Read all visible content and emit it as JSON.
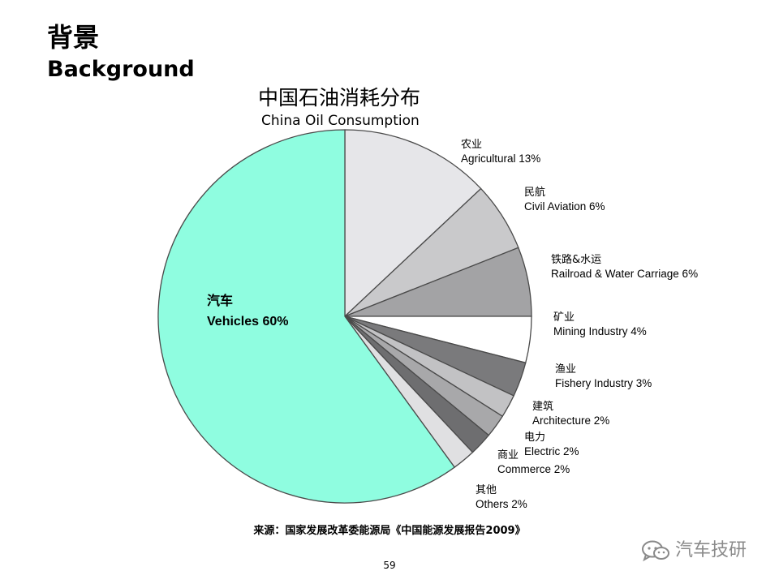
{
  "slide": {
    "heading_cn": "背景",
    "heading_en": "Background",
    "source": "来源：国家发展改革委能源局《中国能源发展报告2009》",
    "page_number": "59",
    "watermark": "汽车技研",
    "watermark_icon": "wechat-icon"
  },
  "chart_data": {
    "type": "pie",
    "title": "中国石油消耗分布",
    "subtitle": "China Oil Consumption",
    "slices": [
      {
        "label_cn": "农业",
        "label_en": "Agricultural",
        "pct_text": "13%",
        "value": 13,
        "color": "#e6e6e9"
      },
      {
        "label_cn": "民航",
        "label_en": "Civil Aviation",
        "pct_text": "6%",
        "value": 6,
        "color": "#c9c9cb"
      },
      {
        "label_cn": "铁路&水运",
        "label_en": "Railroad & Water Carriage",
        "pct_text": "6%",
        "value": 6,
        "color": "#a3a3a5"
      },
      {
        "label_cn": "矿业",
        "label_en": "Mining Industry",
        "pct_text": "4%",
        "value": 4,
        "color": "#ffffff"
      },
      {
        "label_cn": "渔业",
        "label_en": "Fishery Industry",
        "pct_text": "3%",
        "value": 3,
        "color": "#7a7a7c"
      },
      {
        "label_cn": "建筑",
        "label_en": "Architecture",
        "pct_text": "2%",
        "value": 2,
        "color": "#c2c2c4"
      },
      {
        "label_cn": "电力",
        "label_en": "Electric",
        "pct_text": "2%",
        "value": 2,
        "color": "#a8a8aa"
      },
      {
        "label_cn": "商业",
        "label_en": "Commerce",
        "pct_text": "2%",
        "value": 2,
        "color": "#6e6e70"
      },
      {
        "label_cn": "其他",
        "label_en": "Others",
        "pct_text": "2%",
        "value": 2,
        "color": "#e0e0e2"
      },
      {
        "label_cn": "汽车",
        "label_en": "Vehicles",
        "pct_text": "60%",
        "value": 60,
        "color": "#8ffde0"
      }
    ]
  }
}
